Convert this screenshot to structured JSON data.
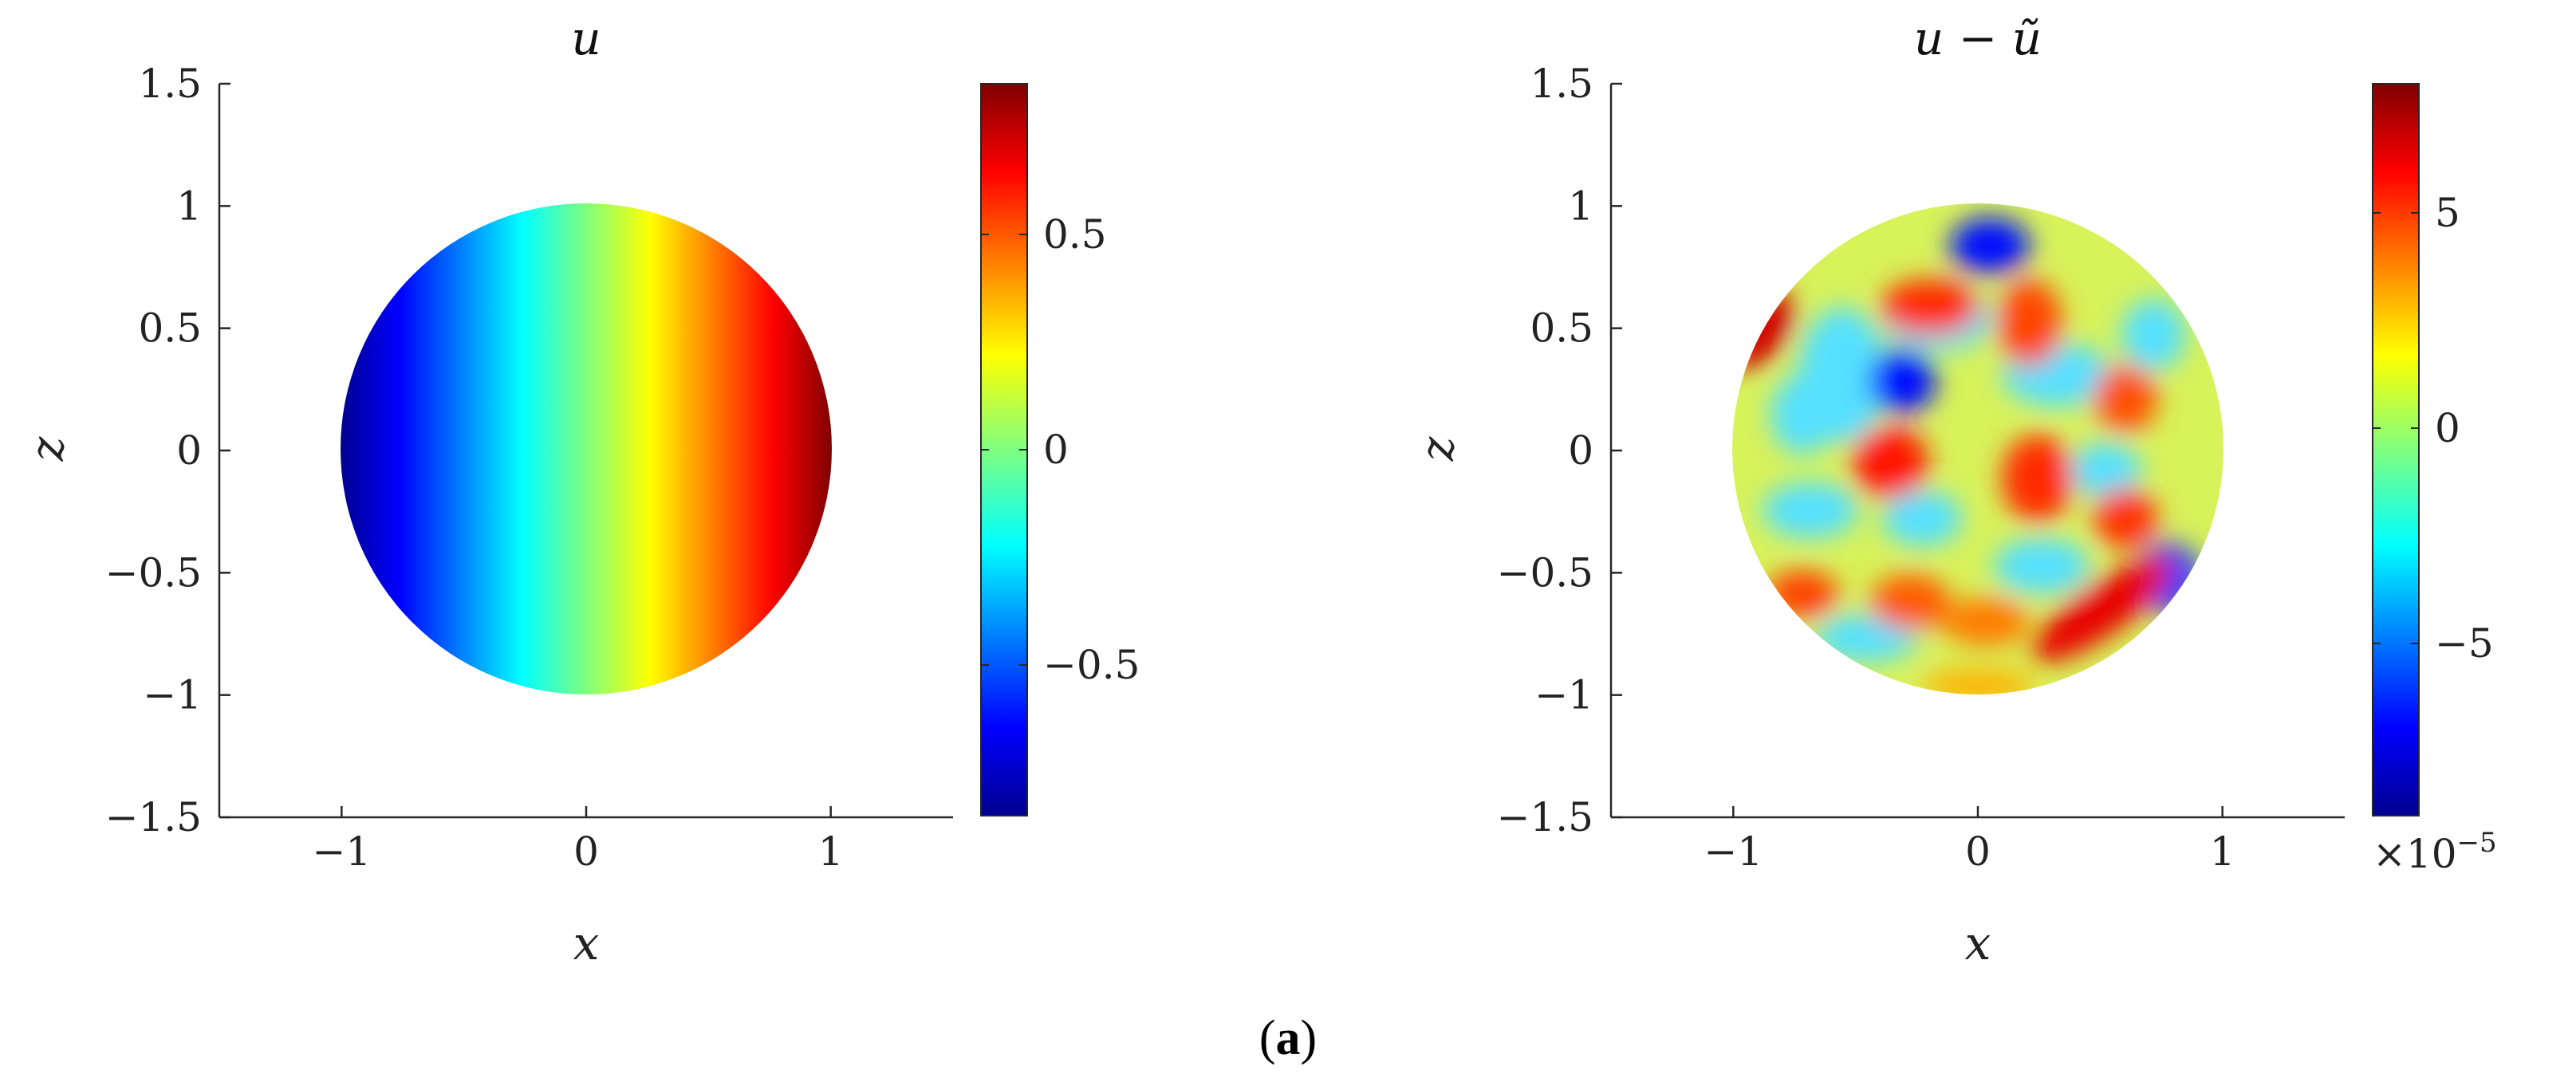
{
  "caption": {
    "open": "(",
    "letter": "a",
    "close": ")"
  },
  "chart_data": [
    {
      "type": "heatmap",
      "title": "u",
      "xlabel": "x",
      "ylabel": "z",
      "xlim": [
        -1.5,
        1.5
      ],
      "ylim": [
        -1.5,
        1.5
      ],
      "xticks": [
        -1,
        0,
        1
      ],
      "xtick_labels": [
        "−1",
        "0",
        "1"
      ],
      "yticks": [
        -1.5,
        -1,
        -0.5,
        0,
        0.5,
        1,
        1.5
      ],
      "ytick_labels": [
        "−1.5",
        "−1",
        "−0.5",
        "0",
        "0.5",
        "1",
        "1.5"
      ],
      "domain": "unit disk",
      "field": "u ≈ x",
      "colormap": "jet",
      "colorbar": {
        "range": [
          -0.85,
          0.85
        ],
        "ticks": [
          -0.5,
          0,
          0.5
        ],
        "tick_labels": [
          "−0.5",
          "0",
          "0.5"
        ],
        "exponent_label": null
      },
      "grid": false
    },
    {
      "type": "heatmap",
      "title": "u − ũ",
      "xlabel": "x",
      "ylabel": "z",
      "xlim": [
        -1.5,
        1.5
      ],
      "ylim": [
        -1.5,
        1.5
      ],
      "xticks": [
        -1,
        0,
        1
      ],
      "xtick_labels": [
        "−1",
        "0",
        "1"
      ],
      "yticks": [
        -1.5,
        -1,
        -0.5,
        0,
        0.5,
        1,
        1.5
      ],
      "ytick_labels": [
        "−1.5",
        "−1",
        "−0.5",
        "0",
        "0.5",
        "1",
        "1.5"
      ],
      "domain": "unit disk",
      "field": "oscillating error pattern",
      "colormap": "jet",
      "colorbar": {
        "range": [
          -9,
          8
        ],
        "ticks": [
          -5,
          0,
          5
        ],
        "tick_labels": [
          "−5",
          "0",
          "5"
        ],
        "exponent_label": "×10−5"
      },
      "grid": false
    }
  ]
}
